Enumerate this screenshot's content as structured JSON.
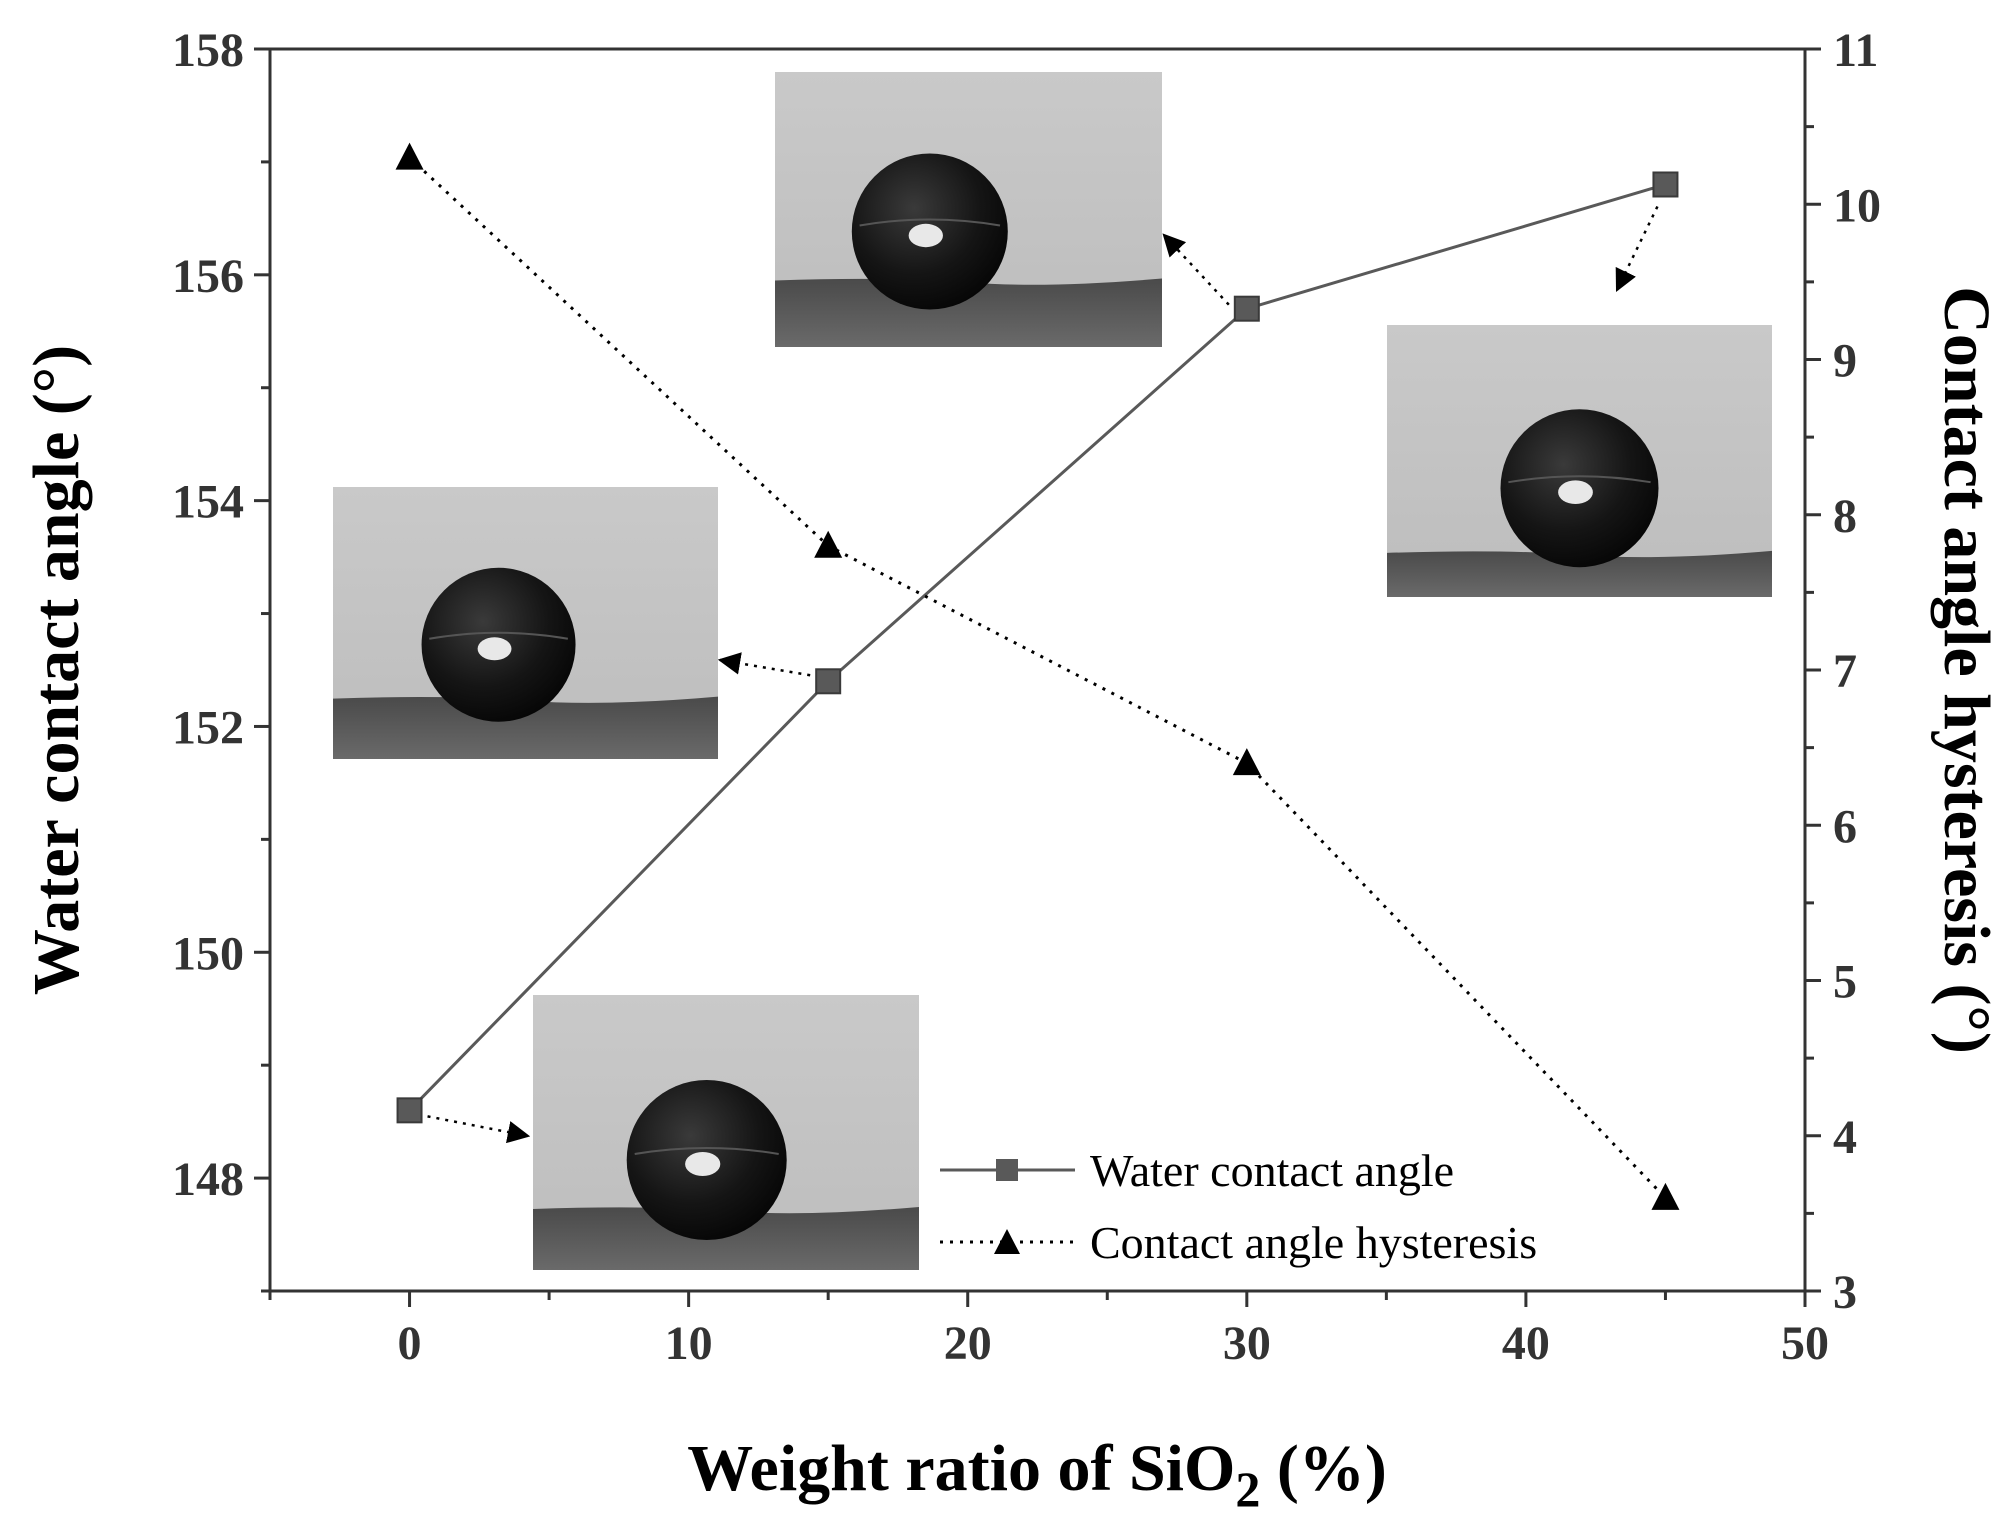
{
  "chart_data": {
    "type": "line",
    "title": "",
    "xlabel": "Weight ratio of SiO2 (%)",
    "xlabel_main": "Weight ratio of SiO",
    "xlabel_sub": "2",
    "xlabel_tail": " (%)",
    "ylabel_left": "Water contact angle (°)",
    "ylabel_right": "Contact angle hysteresis  (°)",
    "x": [
      0,
      15,
      30,
      45
    ],
    "xlim": [
      -5,
      50
    ],
    "xticks": [
      "0",
      "10",
      "20",
      "30",
      "40",
      "50"
    ],
    "ylim_left": [
      147,
      158
    ],
    "yticks_left": [
      "148",
      "150",
      "152",
      "154",
      "156",
      "158"
    ],
    "ylim_right": [
      3,
      11
    ],
    "yticks_right": [
      "3",
      "4",
      "5",
      "6",
      "7",
      "8",
      "9",
      "10",
      "11"
    ],
    "series": [
      {
        "name": "Water contact angle",
        "axis": "left",
        "marker": "square",
        "style": "solid",
        "color": "#595959",
        "values": [
          148.6,
          152.4,
          155.7,
          156.8
        ]
      },
      {
        "name": "Contact angle hysteresis",
        "axis": "right",
        "marker": "triangle",
        "style": "dotted",
        "color": "#000000",
        "values": [
          10.3,
          7.8,
          6.4,
          3.6
        ]
      }
    ],
    "legend": {
      "position": "bottom-right",
      "entries": [
        "Water contact angle",
        "Contact angle hysteresis"
      ]
    },
    "insets": [
      {
        "label": "droplet-0",
        "x": 0
      },
      {
        "label": "droplet-15",
        "x": 15
      },
      {
        "label": "droplet-30",
        "x": 30
      },
      {
        "label": "droplet-45",
        "x": 45
      }
    ]
  }
}
